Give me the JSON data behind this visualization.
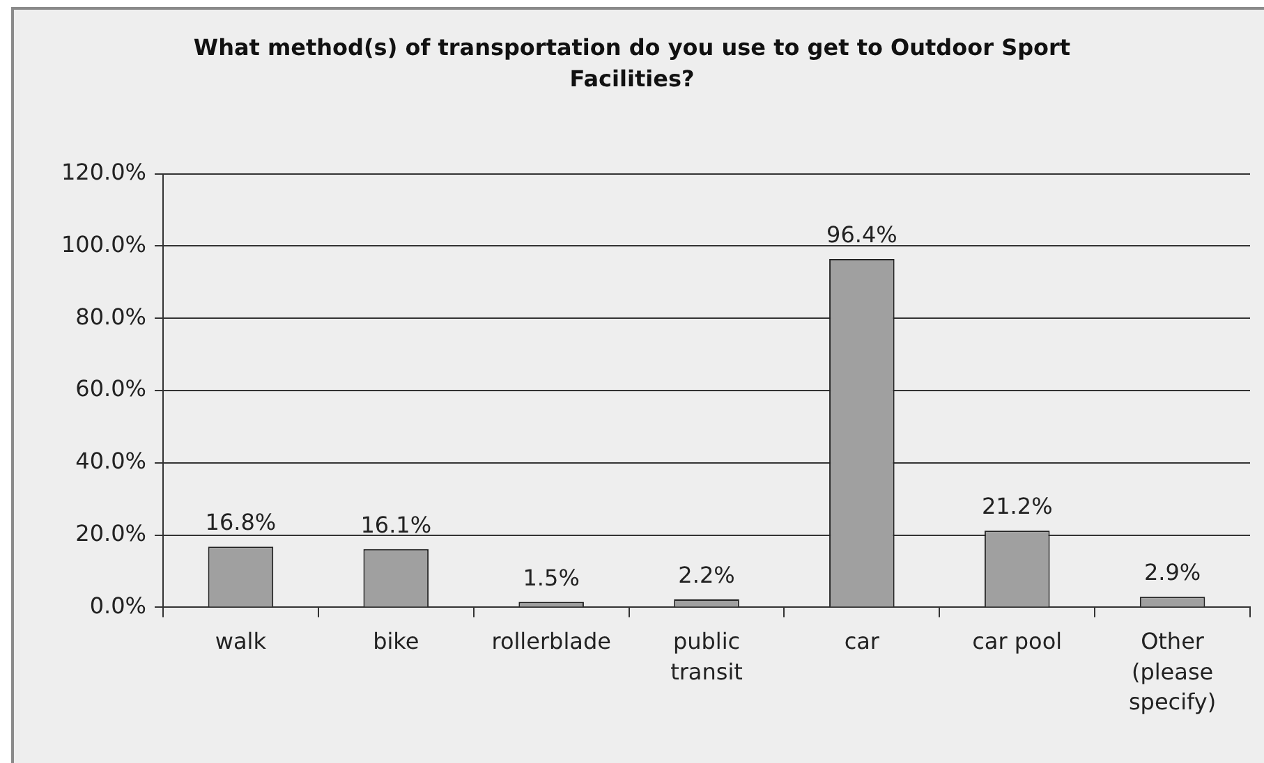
{
  "chart_data": {
    "type": "bar",
    "title": "What method(s) of transportation do you use to get to Outdoor Sport Facilities?",
    "categories": [
      "walk",
      "bike",
      "rollerblade",
      "public transit",
      "car",
      "car pool",
      "Other (please specify)"
    ],
    "values": [
      16.8,
      16.1,
      1.5,
      2.2,
      96.4,
      21.2,
      2.9
    ],
    "value_labels": [
      "16.8%",
      "16.1%",
      "1.5%",
      "2.2%",
      "96.4%",
      "21.2%",
      "2.9%"
    ],
    "color": "#a0a0a0",
    "ylim": [
      0,
      120
    ],
    "yticks": [
      {
        "value": 0,
        "label": "0.0%"
      },
      {
        "value": 20,
        "label": "20.0%"
      },
      {
        "value": 40,
        "label": "40.0%"
      },
      {
        "value": 60,
        "label": "60.0%"
      },
      {
        "value": 80,
        "label": "80.0%"
      },
      {
        "value": 100,
        "label": "100.0%"
      },
      {
        "value": 120,
        "label": "120.0%"
      }
    ],
    "grid": "y"
  }
}
